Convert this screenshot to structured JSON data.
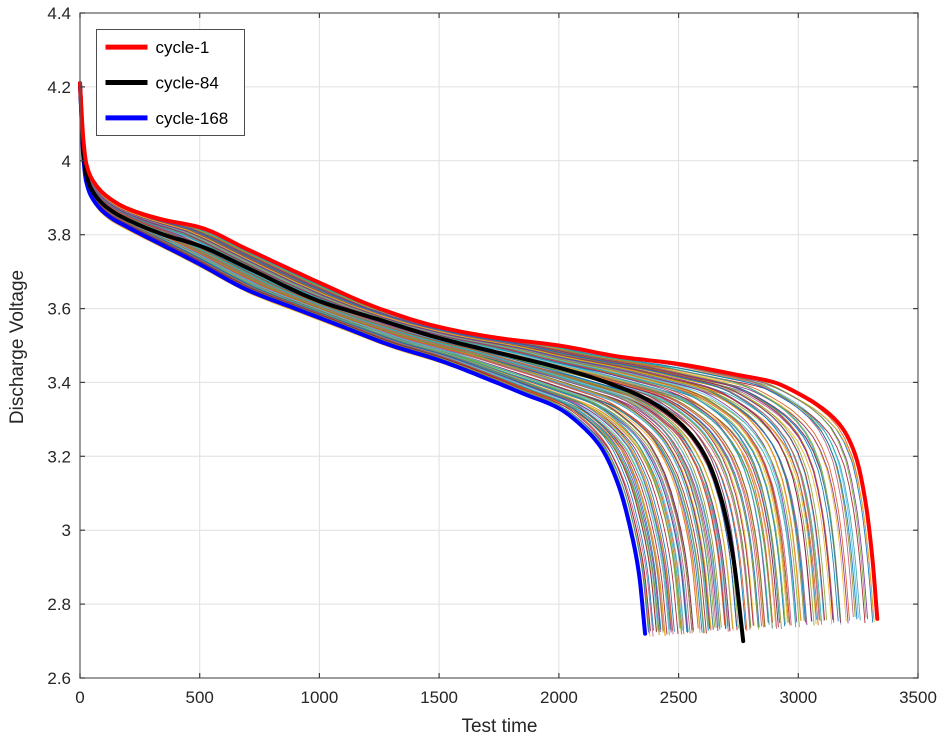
{
  "figure": {
    "background": "#ffffff",
    "axes_box_color": "#595959",
    "grid_color": "#e0e0e0",
    "tick_color": "#404040",
    "tick_label_color": "#262626",
    "label_color": "#262626"
  },
  "chart_data": {
    "type": "line",
    "title": "",
    "xlabel": "Test time",
    "ylabel": "Discharge Voltage",
    "xlim": [
      0,
      3500
    ],
    "ylim": [
      2.6,
      4.4
    ],
    "xticks": [
      0,
      500,
      1000,
      1500,
      2000,
      2500,
      3000,
      3500
    ],
    "xtick_labels": [
      "0",
      "500",
      "1000",
      "1500",
      "2000",
      "2500",
      "3000",
      "3500"
    ],
    "yticks": [
      2.6,
      2.8,
      3.0,
      3.2,
      3.4,
      3.6,
      3.8,
      4.0,
      4.2,
      4.4
    ],
    "ytick_labels": [
      "2.6",
      "2.8",
      "3",
      "3.2",
      "3.4",
      "3.6",
      "3.8",
      "4",
      "4.2",
      "4.4"
    ],
    "grid": true,
    "legend": {
      "position": "top-left",
      "entries": [
        {
          "label": "cycle-1",
          "color": "#ff0000"
        },
        {
          "label": "cycle-84",
          "color": "#000000"
        },
        {
          "label": "cycle-168",
          "color": "#0000ff"
        }
      ]
    },
    "series": [
      {
        "name": "cycle-1",
        "color": "#ff0000",
        "width": 4,
        "points": [
          [
            0,
            4.21
          ],
          [
            15,
            4.05
          ],
          [
            27,
            3.99
          ],
          [
            60,
            3.94
          ],
          [
            120,
            3.9
          ],
          [
            200,
            3.87
          ],
          [
            350,
            3.84
          ],
          [
            500,
            3.82
          ],
          [
            700,
            3.76
          ],
          [
            1000,
            3.67
          ],
          [
            1250,
            3.6
          ],
          [
            1500,
            3.55
          ],
          [
            1750,
            3.52
          ],
          [
            2000,
            3.5
          ],
          [
            2250,
            3.47
          ],
          [
            2500,
            3.45
          ],
          [
            2750,
            3.42
          ],
          [
            2900,
            3.4
          ],
          [
            3000,
            3.37
          ],
          [
            3100,
            3.33
          ],
          [
            3180,
            3.28
          ],
          [
            3240,
            3.2
          ],
          [
            3280,
            3.08
          ],
          [
            3310,
            2.92
          ],
          [
            3330,
            2.76
          ]
        ]
      },
      {
        "name": "cycle-84",
        "color": "#000000",
        "width": 4,
        "points": [
          [
            0,
            4.21
          ],
          [
            15,
            4.02
          ],
          [
            27,
            3.96
          ],
          [
            60,
            3.91
          ],
          [
            120,
            3.87
          ],
          [
            200,
            3.84
          ],
          [
            350,
            3.8
          ],
          [
            500,
            3.77
          ],
          [
            700,
            3.71
          ],
          [
            1000,
            3.62
          ],
          [
            1250,
            3.57
          ],
          [
            1500,
            3.52
          ],
          [
            1750,
            3.48
          ],
          [
            2000,
            3.44
          ],
          [
            2200,
            3.4
          ],
          [
            2350,
            3.36
          ],
          [
            2450,
            3.32
          ],
          [
            2550,
            3.26
          ],
          [
            2620,
            3.19
          ],
          [
            2680,
            3.08
          ],
          [
            2730,
            2.92
          ],
          [
            2770,
            2.7
          ]
        ]
      },
      {
        "name": "cycle-168",
        "color": "#0000ff",
        "width": 4,
        "points": [
          [
            0,
            4.21
          ],
          [
            15,
            4.0
          ],
          [
            27,
            3.94
          ],
          [
            60,
            3.89
          ],
          [
            120,
            3.85
          ],
          [
            200,
            3.82
          ],
          [
            350,
            3.77
          ],
          [
            500,
            3.72
          ],
          [
            700,
            3.65
          ],
          [
            900,
            3.6
          ],
          [
            1100,
            3.55
          ],
          [
            1300,
            3.5
          ],
          [
            1500,
            3.46
          ],
          [
            1700,
            3.41
          ],
          [
            1850,
            3.37
          ],
          [
            2000,
            3.33
          ],
          [
            2100,
            3.28
          ],
          [
            2180,
            3.22
          ],
          [
            2250,
            3.12
          ],
          [
            2300,
            3.0
          ],
          [
            2335,
            2.88
          ],
          [
            2360,
            2.72
          ]
        ]
      }
    ],
    "background_cycles": {
      "description": "unlabeled thin discharge curves, one per cycle between cycle-1 and cycle-168",
      "count": 168,
      "end_time_range": [
        2360,
        3330
      ],
      "end_voltage_range": [
        2.7,
        2.78
      ],
      "line_width": 0.9,
      "palette": [
        "#0072BD",
        "#D95319",
        "#EDB120",
        "#7E2F8E",
        "#77AC30",
        "#4DBEEE",
        "#A2142F",
        "#2FA5A5",
        "#8C8C1F",
        "#C05780"
      ]
    }
  }
}
